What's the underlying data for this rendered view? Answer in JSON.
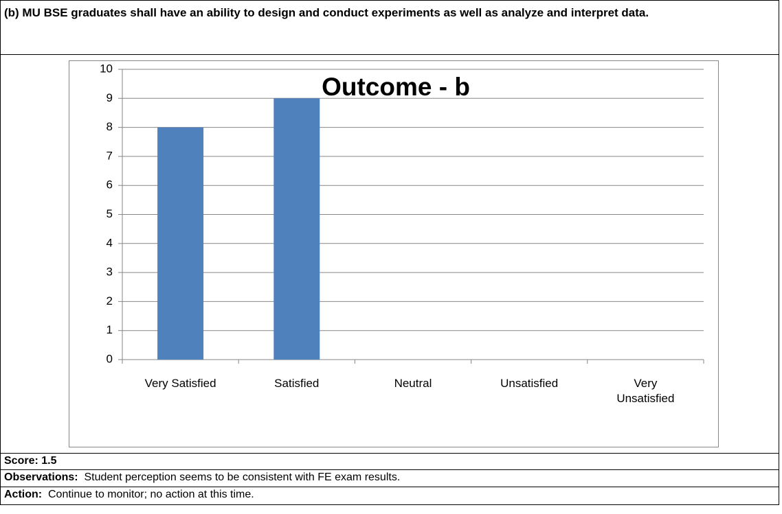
{
  "heading": "(b)  MU BSE graduates shall have an ability to design and conduct experiments as well as analyze and interpret data.",
  "chart_data": {
    "type": "bar",
    "title": "Outcome - b",
    "categories": [
      "Very Satisfied",
      "Satisfied",
      "Neutral",
      "Unsatisfied",
      "Very Unsatisfied"
    ],
    "values": [
      8,
      9,
      0,
      0,
      0
    ],
    "color": "#4f81bd",
    "ylim": [
      0,
      10
    ],
    "yticks": [
      0,
      1,
      2,
      3,
      4,
      5,
      6,
      7,
      8,
      9,
      10
    ],
    "grid": true
  },
  "score": "Score: 1.5",
  "observations": {
    "label": "Observations:",
    "text": "Student perception seems to be consistent with  FE exam results."
  },
  "action": {
    "label": "Action:",
    "text": "Continue to monitor; no action at this time."
  }
}
